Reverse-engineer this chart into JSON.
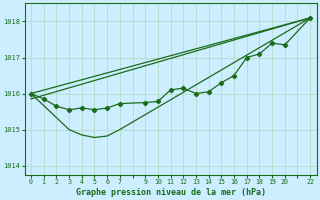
{
  "title": "Graphe pression niveau de la mer (hPa)",
  "bg_color": "#cceeff",
  "line_color": "#1a6b1a",
  "grid_color": "#b8ddd0",
  "xlim": [
    -0.5,
    22.5
  ],
  "ylim": [
    1013.75,
    1018.5
  ],
  "yticks": [
    1014,
    1015,
    1016,
    1017,
    1018
  ],
  "series1_x": [
    0,
    1,
    2,
    3,
    4,
    5,
    6,
    7,
    9,
    10,
    11,
    12,
    13,
    14,
    15,
    16,
    17,
    18,
    19,
    20,
    22
  ],
  "series1_y": [
    1016.0,
    1015.85,
    1015.65,
    1015.55,
    1015.6,
    1015.55,
    1015.6,
    1015.72,
    1015.75,
    1015.78,
    1016.1,
    1016.15,
    1016.0,
    1016.05,
    1016.3,
    1016.5,
    1017.0,
    1017.1,
    1017.4,
    1017.35,
    1018.1
  ],
  "series2_x": [
    0,
    3,
    4,
    5,
    6,
    7,
    22
  ],
  "series2_y": [
    1016.0,
    1015.0,
    1014.85,
    1014.78,
    1014.82,
    1015.0,
    1018.1
  ],
  "series3_x": [
    0,
    22
  ],
  "series3_y": [
    1016.0,
    1018.1
  ],
  "series4_x": [
    0,
    22
  ],
  "series4_y": [
    1015.85,
    1018.1
  ]
}
